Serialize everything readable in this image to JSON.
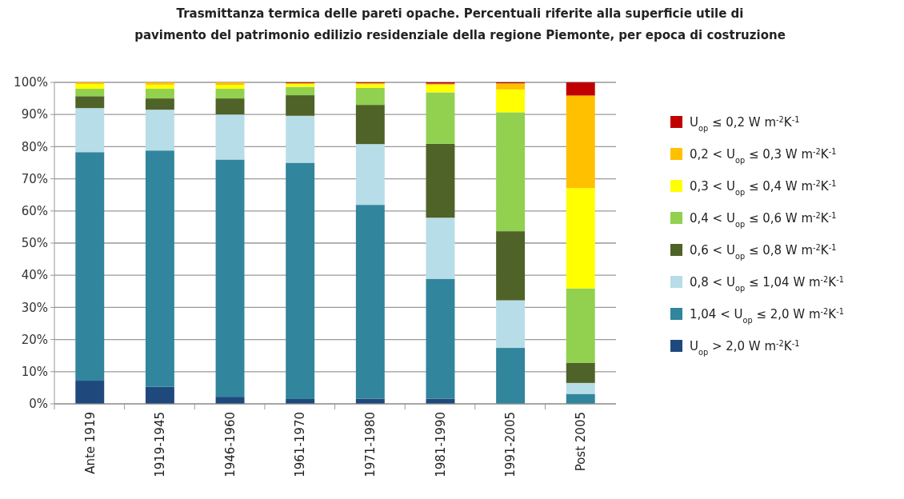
{
  "chart_data": {
    "type": "bar",
    "stacked": true,
    "title": "Trasmittanza termica delle pareti opache. Percentuali riferite alla superficie utile di pavimento del patrimonio edilizio residenziale della regione Piemonte, per epoca di costruzione",
    "categories": [
      "Ante 1919",
      "1919-1945",
      "1946-1960",
      "1961-1970",
      "1971-1980",
      "1981-1990",
      "1991-2005",
      "Post 2005"
    ],
    "series": [
      {
        "name": "U$_{op}$ > 2,0 W m$^{-2}$K$^{-1}$",
        "color": "#1f497d",
        "values": [
          7.2,
          5.3,
          2.2,
          1.5,
          1.6,
          1.6,
          0,
          0
        ]
      },
      {
        "name": "1,04 < U$_{op}$ ≤ 2,0 W m$^{-2}$K$^{-1}$",
        "color": "#31859c",
        "values": [
          71.1,
          73.5,
          73.8,
          73.5,
          60.3,
          37.3,
          17.4,
          3.1
        ]
      },
      {
        "name": "0,8 < U$_{op}$ ≤ 1,04 W m$^{-2}$K$^{-1}$",
        "color": "#b7dde8",
        "values": [
          13.7,
          12.7,
          14,
          14.6,
          18.9,
          19,
          14.8,
          3.4
        ]
      },
      {
        "name": "0,6 < U$_{op}$ ≤ 0,8 W m$^{-2}$K$^{-1}$",
        "color": "#4f6228",
        "values": [
          3.7,
          3.5,
          5,
          6.4,
          12.2,
          23,
          21.5,
          6.3
        ]
      },
      {
        "name": "0,4 < U$_{op}$ ≤ 0,6 W m$^{-2}$K$^{-1}$",
        "color": "#92d050",
        "values": [
          2.3,
          3,
          3,
          2.6,
          5.3,
          16,
          37,
          23.1
        ]
      },
      {
        "name": "0,3 < U$_{op}$ ≤ 0,4 W m$^{-2}$K$^{-1}$",
        "color": "#ffff00",
        "values": [
          1.5,
          1.3,
          1.2,
          0.9,
          1.1,
          2.3,
          7.1,
          31.2
        ]
      },
      {
        "name": "0,2 < U$_{op}$ ≤ 0,3 W m$^{-2}$K$^{-1}$",
        "color": "#ffc000",
        "values": [
          0.5,
          0.7,
          0.8,
          0.3,
          0.4,
          0.4,
          1.9,
          28.8
        ]
      },
      {
        "name": "U$_{op}$ ≤ 0,2 W m$^{-2}$K$^{-1}$",
        "color": "#c00000",
        "values": [
          null,
          null,
          null,
          0.2,
          0.2,
          0.4,
          0.3,
          4.1
        ]
      }
    ],
    "ylim": [
      0,
      100
    ],
    "yticks": [
      {
        "value": 0,
        "label": "0%"
      },
      {
        "value": 10,
        "label": "10%"
      },
      {
        "value": 20,
        "label": "20%"
      },
      {
        "value": 30,
        "label": "30%"
      },
      {
        "value": 40,
        "label": "40%"
      },
      {
        "value": 50,
        "label": "50%"
      },
      {
        "value": 60,
        "label": "60%"
      },
      {
        "value": 70,
        "label": "70%"
      },
      {
        "value": 80,
        "label": "80%"
      },
      {
        "value": 90,
        "label": "90%"
      },
      {
        "value": 100,
        "label": "100%"
      }
    ],
    "grid": "y",
    "legend": "right"
  }
}
